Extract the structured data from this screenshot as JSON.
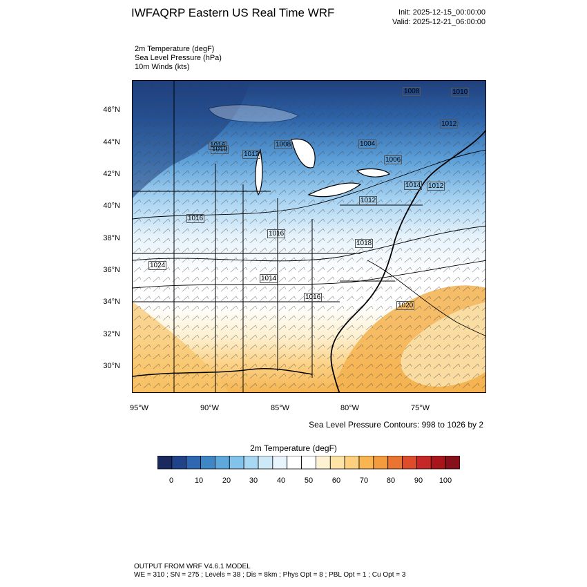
{
  "header": {
    "title": "IWFAQRP Eastern US Real Time WRF",
    "init": "Init: 2025-12-15_00:00:00",
    "valid": "Valid: 2025-12-21_06:00:00"
  },
  "fields": [
    "2m Temperature   (degF)",
    "Sea Level Pressure   (hPa)",
    "10m Winds   (kts)"
  ],
  "map": {
    "lat_labels": [
      "46°N",
      "44°N",
      "42°N",
      "40°N",
      "38°N",
      "36°N",
      "34°N",
      "32°N",
      "30°N"
    ],
    "lon_labels": [
      "95°W",
      "90°W",
      "85°W",
      "80°W",
      "75°W"
    ],
    "pressure_labels": [
      "1008",
      "1010",
      "1008",
      "1012",
      "1004",
      "1006",
      "1012",
      "1016",
      "1014",
      "1012",
      "1016",
      "1016",
      "1018",
      "1014",
      "1016",
      "1020",
      "1024",
      "1012",
      "1010"
    ],
    "slp_note": "Sea Level Pressure Contours: 998 to 1026 by 2",
    "colors": {
      "cold": "#1f4e8e",
      "cool": "#6faee3",
      "neutral": "#ffffff",
      "warm": "#f4b24f"
    }
  },
  "colorbar": {
    "title": "2m Temperature  (degF)",
    "ticks": [
      "0",
      "10",
      "20",
      "30",
      "40",
      "50",
      "60",
      "70",
      "80",
      "90",
      "100"
    ],
    "colors": [
      "#1b2a5e",
      "#20438a",
      "#2f67b1",
      "#3f86c7",
      "#5ea8dc",
      "#83c2eb",
      "#a9d8f4",
      "#cde9f8",
      "#e9f5fc",
      "#ffffff",
      "#ffffff",
      "#fdf2d4",
      "#fde4a6",
      "#fcd07e",
      "#f8b552",
      "#f39b3e",
      "#ea7432",
      "#dd4d2c",
      "#c62828",
      "#a8161c",
      "#87111a"
    ]
  },
  "footer": {
    "model": "OUTPUT FROM WRF V4.6.1 MODEL",
    "config": "WE = 310 ; SN = 275 ; Levels = 38 ; Dis = 8km ; Phys Opt = 8 ; PBL Opt = 1 ; Cu Opt = 3"
  }
}
